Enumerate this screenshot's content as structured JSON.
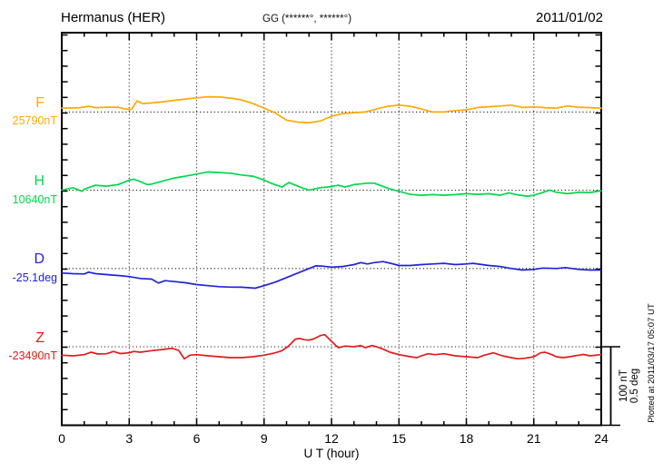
{
  "chart_data": {
    "type": "line",
    "title": "Hermanus (HER)",
    "subtitle": "GG (******°, ******°)",
    "date_label": "2011/01/02",
    "xlabel": "U T (hour)",
    "xlim": [
      0,
      24
    ],
    "x_major_tick": 3,
    "x_minor_tick": 1,
    "x_tick_labels": [
      "0",
      "3",
      "6",
      "9",
      "12",
      "15",
      "18",
      "21",
      "24"
    ],
    "grid": "dotted vertical lines at 3h intervals, dotted horizontal baseline per trace",
    "scale_bar": {
      "nT": 100,
      "deg": 0.5,
      "labels": [
        "100 nT",
        "0.5 deg"
      ]
    },
    "plotted_at": "Plotted at 2011/03/17 05:07 UT",
    "series": [
      {
        "name": "F",
        "unit": "nT",
        "baseline_label": "25790nT",
        "color": "#FFAA00",
        "points": [
          [
            0,
            5
          ],
          [
            0.8,
            5.6
          ],
          [
            1.2,
            7.3
          ],
          [
            1.5,
            5.6
          ],
          [
            2,
            6.2
          ],
          [
            2.5,
            6.2
          ],
          [
            2.8,
            3.8
          ],
          [
            3.1,
            3.3
          ],
          [
            3.35,
            14.3
          ],
          [
            3.6,
            10.8
          ],
          [
            4,
            11.6
          ],
          [
            4.5,
            13.1
          ],
          [
            5,
            14.9
          ],
          [
            5.5,
            16.6
          ],
          [
            6,
            18.1
          ],
          [
            6.5,
            19.5
          ],
          [
            7,
            19.3
          ],
          [
            7.5,
            17.8
          ],
          [
            8,
            15.5
          ],
          [
            8.5,
            10.8
          ],
          [
            9,
            5
          ],
          [
            9.5,
            -1.2
          ],
          [
            10,
            -10.5
          ],
          [
            10.5,
            -13
          ],
          [
            11,
            -13.6
          ],
          [
            11.5,
            -11.6
          ],
          [
            12,
            -5.5
          ],
          [
            12.5,
            -2
          ],
          [
            13,
            -0.8
          ],
          [
            13.5,
            0
          ],
          [
            14,
            3.8
          ],
          [
            14.5,
            7.3
          ],
          [
            15,
            8.8
          ],
          [
            15.5,
            7.3
          ],
          [
            16,
            3.8
          ],
          [
            16.5,
            0
          ],
          [
            17,
            0
          ],
          [
            17.5,
            1.9
          ],
          [
            18,
            2.7
          ],
          [
            18.5,
            5.8
          ],
          [
            19,
            6.7
          ],
          [
            19.5,
            7.7
          ],
          [
            20,
            8.8
          ],
          [
            20.5,
            5.8
          ],
          [
            21,
            6.5
          ],
          [
            21.5,
            5.6
          ],
          [
            22,
            5
          ],
          [
            22.5,
            7.7
          ],
          [
            23,
            6.2
          ],
          [
            23.5,
            5.6
          ],
          [
            24,
            5
          ]
        ]
      },
      {
        "name": "H",
        "unit": "nT",
        "baseline_label": "10640nT",
        "color": "#00D94C",
        "points": [
          [
            0,
            0.2
          ],
          [
            0.5,
            3.3
          ],
          [
            0.9,
            -1.4
          ],
          [
            1,
            1.4
          ],
          [
            1.5,
            6.4
          ],
          [
            2,
            5.2
          ],
          [
            2.5,
            7.2
          ],
          [
            3,
            13
          ],
          [
            3.2,
            14.2
          ],
          [
            3.5,
            11
          ],
          [
            3.8,
            7.2
          ],
          [
            4,
            7.9
          ],
          [
            4.5,
            11.9
          ],
          [
            5,
            15.7
          ],
          [
            5.5,
            18
          ],
          [
            6,
            20.7
          ],
          [
            6.5,
            23.5
          ],
          [
            7,
            22.7
          ],
          [
            7.5,
            21.9
          ],
          [
            8,
            19.5
          ],
          [
            8.5,
            18
          ],
          [
            9,
            13
          ],
          [
            9.3,
            9.1
          ],
          [
            9.8,
            4.1
          ],
          [
            10.1,
            9.9
          ],
          [
            10.4,
            6.4
          ],
          [
            10.7,
            2.9
          ],
          [
            11,
            0.2
          ],
          [
            11.5,
            3.3
          ],
          [
            12,
            4.7
          ],
          [
            12.3,
            6.4
          ],
          [
            12.6,
            4.1
          ],
          [
            13,
            7.2
          ],
          [
            13.6,
            9.1
          ],
          [
            13.9,
            9.1
          ],
          [
            14.2,
            6
          ],
          [
            14.5,
            2.6
          ],
          [
            15,
            -1.4
          ],
          [
            15.5,
            -5.2
          ],
          [
            16,
            -6.4
          ],
          [
            16.5,
            -5.6
          ],
          [
            17,
            -6.4
          ],
          [
            17.5,
            -5.6
          ],
          [
            18,
            -4.4
          ],
          [
            18.5,
            -5.2
          ],
          [
            19,
            -4.4
          ],
          [
            19.5,
            -6.4
          ],
          [
            19.9,
            -3.3
          ],
          [
            20.2,
            -5.6
          ],
          [
            20.7,
            -7.6
          ],
          [
            21,
            -6.4
          ],
          [
            21.4,
            -2.9
          ],
          [
            21.7,
            0.2
          ],
          [
            22,
            -2.6
          ],
          [
            22.5,
            -4.4
          ],
          [
            23,
            -2.6
          ],
          [
            23.5,
            -2.9
          ],
          [
            24,
            -0.6
          ]
        ]
      },
      {
        "name": "D",
        "unit": "deg",
        "baseline_label": "-25.1deg",
        "color": "#2222DD",
        "points": [
          [
            0,
            -0.029
          ],
          [
            0.5,
            -0.033
          ],
          [
            1,
            -0.035
          ],
          [
            1.2,
            -0.023
          ],
          [
            1.5,
            -0.033
          ],
          [
            2,
            -0.039
          ],
          [
            2.5,
            -0.045
          ],
          [
            3,
            -0.052
          ],
          [
            3.5,
            -0.064
          ],
          [
            4,
            -0.068
          ],
          [
            4.3,
            -0.093
          ],
          [
            4.6,
            -0.078
          ],
          [
            5,
            -0.084
          ],
          [
            5.5,
            -0.091
          ],
          [
            6,
            -0.103
          ],
          [
            6.5,
            -0.11
          ],
          [
            7,
            -0.116
          ],
          [
            7.5,
            -0.119
          ],
          [
            8,
            -0.12
          ],
          [
            8.6,
            -0.126
          ],
          [
            9,
            -0.11
          ],
          [
            9.5,
            -0.087
          ],
          [
            10,
            -0.058
          ],
          [
            10.5,
            -0.029
          ],
          [
            11,
            0
          ],
          [
            11.3,
            0.017
          ],
          [
            11.6,
            0.015
          ],
          [
            12,
            0.009
          ],
          [
            12.5,
            0.013
          ],
          [
            13,
            0.025
          ],
          [
            13.3,
            0.038
          ],
          [
            13.6,
            0.029
          ],
          [
            13.9,
            0.038
          ],
          [
            14.3,
            0.044
          ],
          [
            14.7,
            0.031
          ],
          [
            15,
            0.019
          ],
          [
            15.5,
            0.019
          ],
          [
            16,
            0.025
          ],
          [
            16.5,
            0.029
          ],
          [
            17,
            0.033
          ],
          [
            17.5,
            0.025
          ],
          [
            18,
            0.029
          ],
          [
            18.3,
            0.033
          ],
          [
            19,
            0.019
          ],
          [
            19.5,
            0.013
          ],
          [
            20,
            0
          ],
          [
            20.5,
            -0.01
          ],
          [
            21,
            -0.006
          ],
          [
            21.4,
            0.003
          ],
          [
            22,
            0
          ],
          [
            22.4,
            0.006
          ],
          [
            23,
            -0.006
          ],
          [
            23.5,
            -0.01
          ],
          [
            24,
            -0.01
          ]
        ]
      },
      {
        "name": "Z",
        "unit": "nT",
        "baseline_label": "-23490nT",
        "color": "#E31A1A",
        "points": [
          [
            0,
            -10.8
          ],
          [
            0.5,
            -11.6
          ],
          [
            1,
            -10.1
          ],
          [
            1.3,
            -7
          ],
          [
            1.6,
            -9.3
          ],
          [
            2,
            -9
          ],
          [
            2.3,
            -6.1
          ],
          [
            2.6,
            -8.7
          ],
          [
            3,
            -7.8
          ],
          [
            3.2,
            -6.1
          ],
          [
            3.5,
            -7
          ],
          [
            4,
            -5
          ],
          [
            4.5,
            -3.5
          ],
          [
            4.9,
            -2
          ],
          [
            5.2,
            -4.7
          ],
          [
            5.45,
            -15.5
          ],
          [
            5.7,
            -10.8
          ],
          [
            6,
            -10.1
          ],
          [
            6.5,
            -11.6
          ],
          [
            7,
            -12.8
          ],
          [
            7.5,
            -14
          ],
          [
            8,
            -14
          ],
          [
            8.5,
            -12.8
          ],
          [
            9,
            -10.8
          ],
          [
            9.5,
            -7.8
          ],
          [
            9.8,
            -5
          ],
          [
            10.1,
            1.2
          ],
          [
            10.4,
            9.9
          ],
          [
            10.6,
            10.5
          ],
          [
            10.8,
            9
          ],
          [
            11,
            8.5
          ],
          [
            11.2,
            9.9
          ],
          [
            11.5,
            14.3
          ],
          [
            11.7,
            15.5
          ],
          [
            12,
            7
          ],
          [
            12.3,
            -1.2
          ],
          [
            12.6,
            0.8
          ],
          [
            13,
            0
          ],
          [
            13.3,
            1.5
          ],
          [
            13.5,
            -1.2
          ],
          [
            13.8,
            1.5
          ],
          [
            14,
            0
          ],
          [
            14.3,
            -3.1
          ],
          [
            14.6,
            -7
          ],
          [
            15,
            -10.1
          ],
          [
            15.5,
            -12.8
          ],
          [
            15.8,
            -14
          ],
          [
            16,
            -11.6
          ],
          [
            16.3,
            -9
          ],
          [
            16.6,
            -10.1
          ],
          [
            17,
            -9
          ],
          [
            17.5,
            -11.6
          ],
          [
            18,
            -12.8
          ],
          [
            18.5,
            -14
          ],
          [
            18.8,
            -10.8
          ],
          [
            19.2,
            -7.8
          ],
          [
            19.6,
            -11.6
          ],
          [
            20,
            -14
          ],
          [
            20.3,
            -15.5
          ],
          [
            20.6,
            -14.8
          ],
          [
            21,
            -12.8
          ],
          [
            21.3,
            -7.8
          ],
          [
            21.5,
            -7
          ],
          [
            21.8,
            -10.1
          ],
          [
            22,
            -12.8
          ],
          [
            22.3,
            -14
          ],
          [
            22.6,
            -12.8
          ],
          [
            23,
            -10.8
          ],
          [
            23.2,
            -9.9
          ],
          [
            23.5,
            -11.6
          ],
          [
            24,
            -10.1
          ]
        ]
      }
    ]
  }
}
